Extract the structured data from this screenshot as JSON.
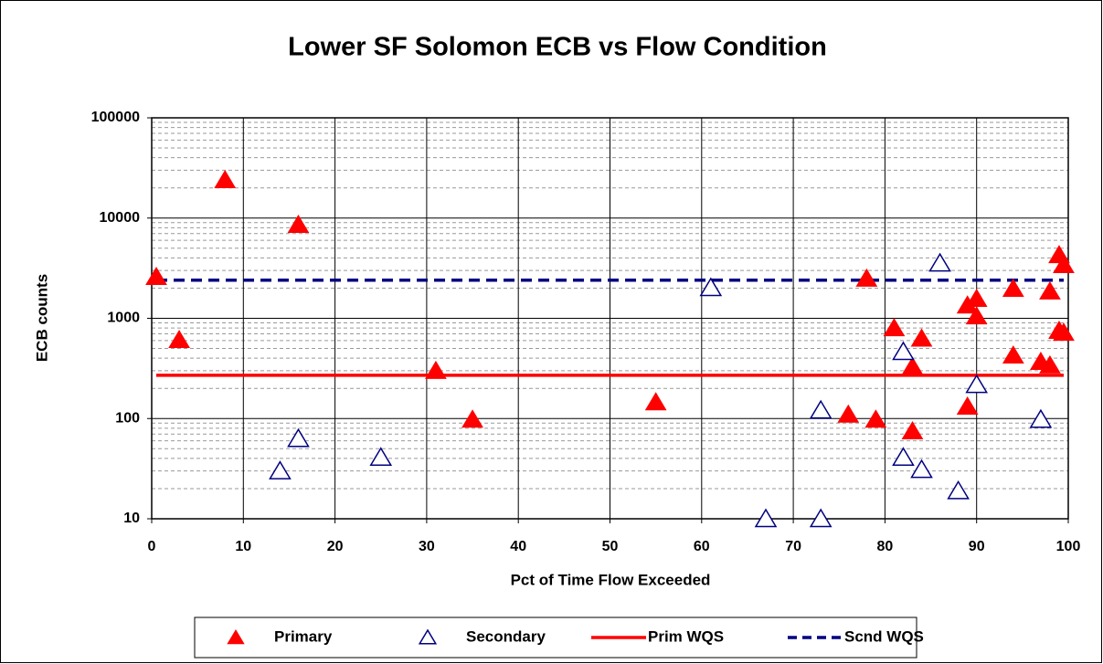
{
  "chart_data": {
    "type": "scatter",
    "title": "Lower SF Solomon ECB vs Flow Condition",
    "x_label": "Pct of Time Flow Exceeded",
    "y_label": "ECB counts",
    "xlim": [
      0,
      100
    ],
    "xticks": [
      0,
      10,
      20,
      30,
      40,
      50,
      60,
      70,
      80,
      90,
      100
    ],
    "ylim": [
      10,
      100000
    ],
    "yticks": [
      10,
      100,
      1000,
      10000,
      100000
    ],
    "y_log": true,
    "grid": true,
    "minor_grid": true,
    "legend": "bottom",
    "series": [
      {
        "name": "Primary",
        "kind": "marker",
        "marker": "filled-triangle",
        "color": "#ff0000",
        "x": [
          0.5,
          3,
          8,
          16,
          31,
          35,
          55,
          76,
          78,
          79,
          81,
          83,
          83,
          84,
          89,
          89,
          90,
          90,
          94,
          94,
          97,
          98,
          98,
          99,
          99.5,
          99,
          99.5
        ],
        "values": [
          2600,
          610,
          24000,
          8600,
          300,
          98,
          146,
          110,
          2500,
          98,
          800,
          330,
          75,
          630,
          1350,
          132,
          1570,
          1050,
          1980,
          427,
          369,
          1860,
          340,
          4290,
          3410,
          754,
          720
        ]
      },
      {
        "name": "Secondary",
        "kind": "marker",
        "marker": "open-triangle",
        "color": "#000080",
        "x": [
          14,
          16,
          25,
          61,
          67,
          73,
          73,
          82,
          82,
          84,
          86,
          88,
          90,
          97
        ],
        "values": [
          30,
          63,
          41,
          2020,
          10,
          121,
          10,
          465,
          41,
          31,
          3550,
          19,
          218,
          98
        ]
      },
      {
        "name": "Prim WQS",
        "kind": "line",
        "dash": false,
        "color": "#ff0000",
        "x": [
          0.5,
          99.5
        ],
        "values": [
          270,
          270
        ]
      },
      {
        "name": "Scnd WQS",
        "kind": "line",
        "dash": true,
        "color": "#000080",
        "x": [
          0.5,
          99.5
        ],
        "values": [
          2400,
          2400
        ]
      }
    ]
  }
}
